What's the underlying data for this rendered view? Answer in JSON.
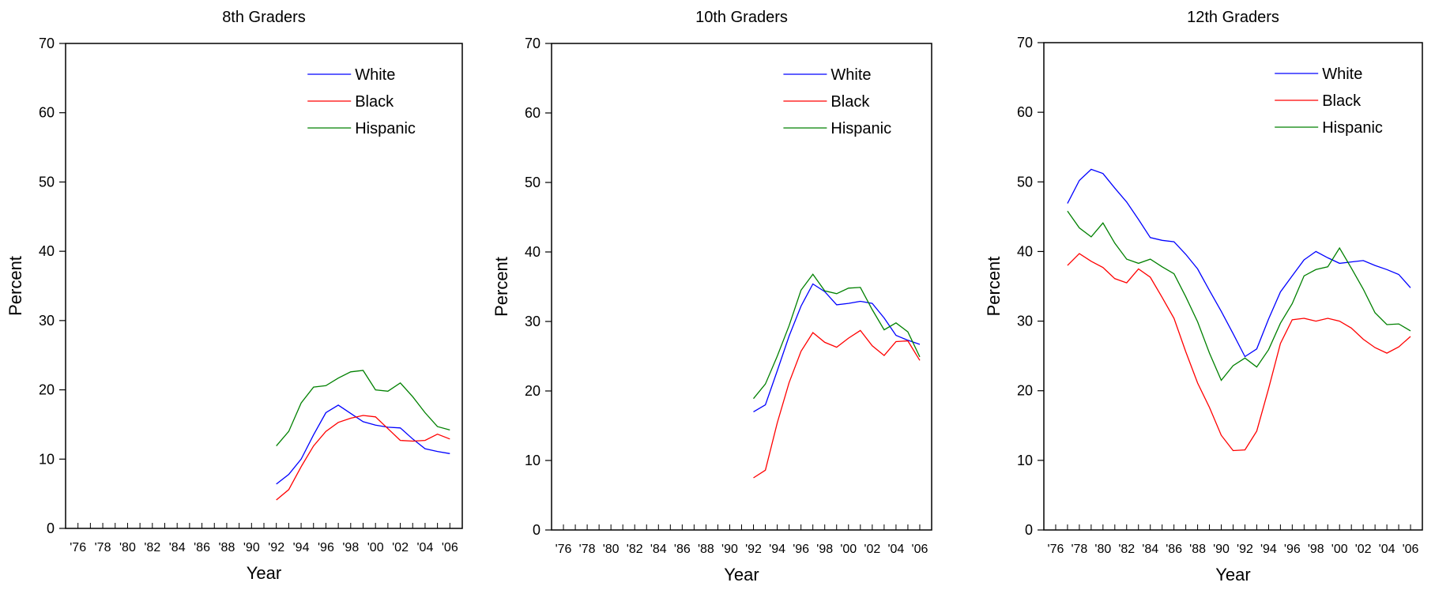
{
  "chart_data": [
    {
      "type": "line",
      "title": "8th Graders",
      "xlabel": "Year",
      "ylabel": "Percent",
      "ylim": [
        0,
        70
      ],
      "yticks": [
        0,
        10,
        20,
        30,
        40,
        50,
        60,
        70
      ],
      "xlim": [
        1975,
        2007
      ],
      "xtick_labels": [
        "'76",
        "'78",
        "'80",
        "'82",
        "'84",
        "'86",
        "'88",
        "'90",
        "'92",
        "'94",
        "'96",
        "'98",
        "'00",
        "'02",
        "'04",
        "'06"
      ],
      "legend": "top-right",
      "grid": false,
      "x": [
        1992,
        1993,
        1994,
        1995,
        1996,
        1997,
        1998,
        1999,
        2000,
        2001,
        2002,
        2003,
        2004,
        2005,
        2006
      ],
      "series": [
        {
          "name": "White",
          "color": "#0000ff",
          "values": [
            6.4,
            7.8,
            10.0,
            13.5,
            16.7,
            17.8,
            16.6,
            15.4,
            14.9,
            14.6,
            14.5,
            12.9,
            11.5,
            11.1,
            10.8
          ]
        },
        {
          "name": "Black",
          "color": "#ff0000",
          "values": [
            4.1,
            5.6,
            8.9,
            11.9,
            14.0,
            15.3,
            15.9,
            16.3,
            16.1,
            14.4,
            12.7,
            12.6,
            12.7,
            13.6,
            12.9
          ]
        },
        {
          "name": "Hispanic",
          "color": "#008000",
          "values": [
            11.9,
            14.0,
            18.1,
            20.4,
            20.6,
            21.7,
            22.6,
            22.8,
            20.0,
            19.8,
            21.0,
            19.0,
            16.7,
            14.7,
            14.2
          ]
        }
      ]
    },
    {
      "type": "line",
      "title": "10th Graders",
      "xlabel": "Year",
      "ylabel": "Percent",
      "ylim": [
        0,
        70
      ],
      "yticks": [
        0,
        10,
        20,
        30,
        40,
        50,
        60,
        70
      ],
      "xlim": [
        1975,
        2007
      ],
      "xtick_labels": [
        "'76",
        "'78",
        "'80",
        "'82",
        "'84",
        "'86",
        "'88",
        "'90",
        "'92",
        "'94",
        "'96",
        "'98",
        "'00",
        "'02",
        "'04",
        "'06"
      ],
      "legend": "top-right",
      "grid": false,
      "x": [
        1992,
        1993,
        1994,
        1995,
        1996,
        1997,
        1998,
        1999,
        2000,
        2001,
        2002,
        2003,
        2004,
        2005,
        2006
      ],
      "series": [
        {
          "name": "White",
          "color": "#0000ff",
          "values": [
            17.0,
            18.0,
            22.9,
            27.9,
            32.2,
            35.4,
            34.3,
            32.4,
            32.6,
            32.9,
            32.6,
            30.5,
            28.0,
            27.3,
            26.7
          ]
        },
        {
          "name": "Black",
          "color": "#ff0000",
          "values": [
            7.5,
            8.6,
            15.4,
            21.2,
            25.7,
            28.4,
            27.0,
            26.3,
            27.6,
            28.7,
            26.5,
            25.1,
            27.1,
            27.2,
            24.4
          ]
        },
        {
          "name": "Hispanic",
          "color": "#008000",
          "values": [
            18.9,
            21.0,
            25.0,
            29.4,
            34.5,
            36.8,
            34.4,
            34.0,
            34.8,
            34.9,
            31.7,
            28.8,
            29.8,
            28.5,
            24.9
          ]
        }
      ]
    },
    {
      "type": "line",
      "title": "12th Graders",
      "xlabel": "Year",
      "ylabel": "Percent",
      "ylim": [
        0,
        70
      ],
      "yticks": [
        0,
        10,
        20,
        30,
        40,
        50,
        60,
        70
      ],
      "xlim": [
        1975,
        2007
      ],
      "xtick_labels": [
        "'76",
        "'78",
        "'80",
        "'82",
        "'84",
        "'86",
        "'88",
        "'90",
        "'92",
        "'94",
        "'96",
        "'98",
        "'00",
        "'02",
        "'04",
        "'06"
      ],
      "legend": "top-right",
      "grid": false,
      "x": [
        1977,
        1978,
        1979,
        1980,
        1981,
        1982,
        1983,
        1984,
        1985,
        1986,
        1987,
        1988,
        1989,
        1990,
        1991,
        1992,
        1993,
        1994,
        1995,
        1996,
        1997,
        1998,
        1999,
        2000,
        2001,
        2002,
        2003,
        2004,
        2005,
        2006
      ],
      "series": [
        {
          "name": "White",
          "color": "#0000ff",
          "values": [
            46.9,
            50.2,
            51.8,
            51.2,
            49.1,
            47.1,
            44.6,
            42.0,
            41.6,
            41.4,
            39.6,
            37.5,
            34.4,
            31.4,
            28.2,
            24.9,
            26.0,
            30.3,
            34.2,
            36.5,
            38.8,
            40.0,
            39.1,
            38.3,
            38.5,
            38.7,
            38.0,
            37.4,
            36.7,
            34.8
          ]
        },
        {
          "name": "Black",
          "color": "#ff0000",
          "values": [
            38.0,
            39.7,
            38.6,
            37.7,
            36.1,
            35.5,
            37.5,
            36.3,
            33.4,
            30.4,
            25.6,
            21.1,
            17.6,
            13.6,
            11.4,
            11.5,
            14.2,
            20.3,
            26.8,
            30.2,
            30.4,
            30.0,
            30.4,
            30.0,
            29.0,
            27.4,
            26.2,
            25.4,
            26.3,
            27.8
          ]
        },
        {
          "name": "Hispanic",
          "color": "#008000",
          "values": [
            45.8,
            43.4,
            42.1,
            44.1,
            41.2,
            38.9,
            38.3,
            38.9,
            37.8,
            36.8,
            33.5,
            29.9,
            25.4,
            21.5,
            23.6,
            24.7,
            23.4,
            25.9,
            29.7,
            32.5,
            36.5,
            37.4,
            37.8,
            40.5,
            37.6,
            34.6,
            31.2,
            29.5,
            29.6,
            28.6
          ]
        }
      ]
    }
  ]
}
